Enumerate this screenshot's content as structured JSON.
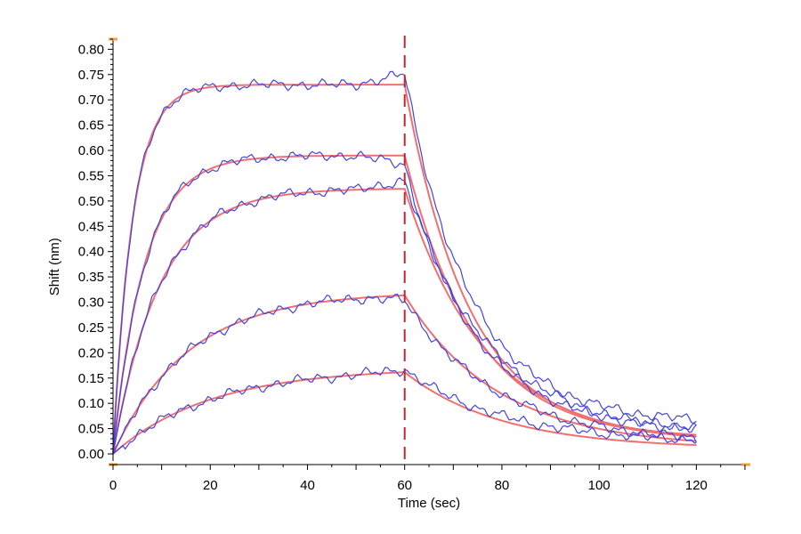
{
  "chart_data": {
    "type": "line",
    "title": "",
    "xlabel": "Time (sec)",
    "ylabel": "Shift (nm)",
    "xlim": [
      0,
      130
    ],
    "ylim": [
      0,
      0.82
    ],
    "x_ticks": [
      0,
      20,
      40,
      60,
      80,
      100,
      120
    ],
    "y_ticks": [
      0.0,
      0.05,
      0.1,
      0.15,
      0.2,
      0.25,
      0.3,
      0.35,
      0.4,
      0.45,
      0.5,
      0.55,
      0.6,
      0.65,
      0.7,
      0.75,
      0.8
    ],
    "grid": false,
    "legend": "none",
    "colors": {
      "measured": "#4444dd",
      "fit": "#f07070",
      "marker": "#c0282d",
      "axis_end": "#f0a040"
    },
    "association_end": 60,
    "time_end": 120,
    "marker_x": 60,
    "curves": [
      {
        "plateau": 0.73,
        "k_on": 0.25,
        "k_off": 0.075,
        "tail": 0.03
      },
      {
        "plateau": 0.59,
        "k_on": 0.155,
        "k_off": 0.068,
        "tail": 0.025
      },
      {
        "plateau": 0.525,
        "k_on": 0.105,
        "k_off": 0.06,
        "tail": 0.02
      },
      {
        "plateau": 0.32,
        "k_on": 0.065,
        "k_off": 0.052,
        "tail": 0.012
      },
      {
        "plateau": 0.17,
        "k_on": 0.05,
        "k_off": 0.05,
        "tail": 0.01
      }
    ]
  }
}
